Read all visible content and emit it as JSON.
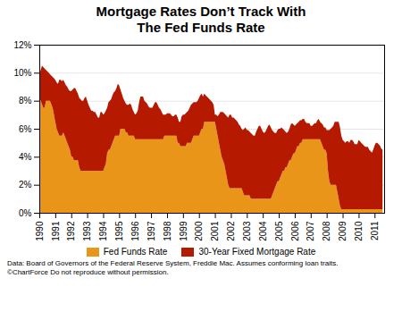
{
  "chart_data": {
    "type": "area",
    "title": "Mortgage Rates Don’t Track With\nThe Fed Funds Rate",
    "annotations": [
      "Data: Board of Governors of the Federal Reserve System, Freddie Mac. Assumes conforming loan traits.",
      "©ChartForce  Do not reproduce without permission."
    ],
    "x": [
      1990,
      1990.083,
      1990.167,
      1990.25,
      1990.333,
      1990.417,
      1990.5,
      1990.583,
      1990.667,
      1990.75,
      1990.833,
      1990.917,
      1991,
      1991.083,
      1991.167,
      1991.25,
      1991.333,
      1991.417,
      1991.5,
      1991.583,
      1991.667,
      1991.75,
      1991.833,
      1991.917,
      1992,
      1992.083,
      1992.167,
      1992.25,
      1992.333,
      1992.417,
      1992.5,
      1992.583,
      1992.667,
      1992.75,
      1992.833,
      1992.917,
      1993,
      1993.083,
      1993.167,
      1993.25,
      1993.333,
      1993.417,
      1993.5,
      1993.583,
      1993.667,
      1993.75,
      1993.833,
      1993.917,
      1994,
      1994.083,
      1994.167,
      1994.25,
      1994.333,
      1994.417,
      1994.5,
      1994.583,
      1994.667,
      1994.75,
      1994.833,
      1994.917,
      1995,
      1995.083,
      1995.167,
      1995.25,
      1995.333,
      1995.417,
      1995.5,
      1995.583,
      1995.667,
      1995.75,
      1995.833,
      1995.917,
      1996,
      1996.083,
      1996.167,
      1996.25,
      1996.333,
      1996.417,
      1996.5,
      1996.583,
      1996.667,
      1996.75,
      1996.833,
      1996.917,
      1997,
      1997.083,
      1997.167,
      1997.25,
      1997.333,
      1997.417,
      1997.5,
      1997.583,
      1997.667,
      1997.75,
      1997.833,
      1997.917,
      1998,
      1998.083,
      1998.167,
      1998.25,
      1998.333,
      1998.417,
      1998.5,
      1998.583,
      1998.667,
      1998.75,
      1998.833,
      1998.917,
      1999,
      1999.083,
      1999.167,
      1999.25,
      1999.333,
      1999.417,
      1999.5,
      1999.583,
      1999.667,
      1999.75,
      1999.833,
      1999.917,
      2000,
      2000.083,
      2000.167,
      2000.25,
      2000.333,
      2000.417,
      2000.5,
      2000.583,
      2000.667,
      2000.75,
      2000.833,
      2000.917,
      2001,
      2001.083,
      2001.167,
      2001.25,
      2001.333,
      2001.417,
      2001.5,
      2001.583,
      2001.667,
      2001.75,
      2001.833,
      2001.917,
      2002,
      2002.083,
      2002.167,
      2002.25,
      2002.333,
      2002.417,
      2002.5,
      2002.583,
      2002.667,
      2002.75,
      2002.833,
      2002.917,
      2003,
      2003.083,
      2003.167,
      2003.25,
      2003.333,
      2003.417,
      2003.5,
      2003.583,
      2003.667,
      2003.75,
      2003.833,
      2003.917,
      2004,
      2004.083,
      2004.167,
      2004.25,
      2004.333,
      2004.417,
      2004.5,
      2004.583,
      2004.667,
      2004.75,
      2004.833,
      2004.917,
      2005,
      2005.083,
      2005.167,
      2005.25,
      2005.333,
      2005.417,
      2005.5,
      2005.583,
      2005.667,
      2005.75,
      2005.833,
      2005.917,
      2006,
      2006.083,
      2006.167,
      2006.25,
      2006.333,
      2006.417,
      2006.5,
      2006.583,
      2006.667,
      2006.75,
      2006.833,
      2006.917,
      2007,
      2007.083,
      2007.167,
      2007.25,
      2007.333,
      2007.417,
      2007.5,
      2007.583,
      2007.667,
      2007.75,
      2007.833,
      2007.917,
      2008,
      2008.083,
      2008.167,
      2008.25,
      2008.333,
      2008.417,
      2008.5,
      2008.583,
      2008.667,
      2008.75,
      2008.833,
      2008.917,
      2009,
      2009.083,
      2009.167,
      2009.25,
      2009.333,
      2009.417,
      2009.5,
      2009.583,
      2009.667,
      2009.75,
      2009.833,
      2009.917,
      2010,
      2010.083,
      2010.167,
      2010.25,
      2010.333,
      2010.417,
      2010.5,
      2010.583,
      2010.667,
      2010.75,
      2010.833,
      2010.917,
      2011,
      2011.083,
      2011.167,
      2011.25,
      2011.333,
      2011.417,
      2011.5
    ],
    "series": [
      {
        "name": "Fed Funds Rate",
        "color": "#E8951A",
        "values": [
          8.25,
          8.0,
          7.75,
          7.5,
          7.5,
          8.0,
          8.0,
          8.0,
          8.0,
          7.76,
          7.5,
          7.0,
          6.5,
          6.0,
          5.75,
          5.5,
          5.5,
          5.5,
          5.75,
          5.5,
          5.25,
          5.0,
          4.75,
          4.5,
          4.0,
          4.0,
          3.75,
          3.75,
          3.75,
          3.75,
          3.25,
          3.0,
          3.0,
          3.0,
          3.0,
          3.0,
          3.0,
          3.0,
          3.0,
          3.0,
          3.0,
          3.0,
          3.0,
          3.0,
          3.0,
          3.0,
          3.0,
          3.0,
          3.0,
          3.25,
          3.5,
          4.25,
          4.5,
          4.5,
          4.75,
          5.0,
          5.25,
          5.5,
          5.5,
          5.5,
          5.5,
          6.0,
          6.0,
          6.0,
          6.0,
          5.75,
          5.75,
          5.5,
          5.5,
          5.5,
          5.5,
          5.5,
          5.25,
          5.25,
          5.25,
          5.25,
          5.25,
          5.25,
          5.25,
          5.25,
          5.25,
          5.25,
          5.25,
          5.25,
          5.25,
          5.25,
          5.25,
          5.25,
          5.25,
          5.25,
          5.25,
          5.25,
          5.25,
          5.25,
          5.5,
          5.5,
          5.5,
          5.5,
          5.5,
          5.5,
          5.5,
          5.5,
          5.5,
          5.5,
          5.0,
          5.0,
          4.75,
          4.75,
          4.75,
          4.75,
          4.75,
          5.0,
          5.0,
          5.0,
          5.0,
          5.25,
          5.5,
          5.5,
          5.5,
          5.5,
          5.5,
          5.75,
          6.0,
          6.0,
          6.5,
          6.5,
          6.5,
          6.5,
          6.5,
          6.5,
          6.5,
          6.5,
          6.5,
          6.0,
          5.5,
          5.0,
          4.5,
          4.0,
          3.75,
          3.5,
          3.0,
          2.5,
          2.0,
          1.75,
          1.75,
          1.75,
          1.75,
          1.75,
          1.75,
          1.75,
          1.75,
          1.75,
          1.75,
          1.5,
          1.25,
          1.25,
          1.25,
          1.25,
          1.25,
          1.0,
          1.0,
          1.0,
          1.0,
          1.0,
          1.0,
          1.0,
          1.0,
          1.0,
          1.0,
          1.0,
          1.0,
          1.0,
          1.0,
          1.0,
          1.0,
          1.25,
          1.5,
          1.75,
          2.0,
          2.25,
          2.25,
          2.5,
          2.75,
          3.0,
          3.0,
          3.25,
          3.25,
          3.5,
          3.75,
          3.75,
          4.0,
          4.25,
          4.25,
          4.5,
          4.75,
          4.75,
          5.0,
          5.0,
          5.25,
          5.25,
          5.25,
          5.25,
          5.25,
          5.25,
          5.25,
          5.25,
          5.25,
          5.25,
          5.25,
          5.25,
          5.25,
          5.25,
          5.0,
          4.75,
          4.5,
          4.5,
          4.25,
          3.0,
          2.25,
          2.0,
          2.0,
          2.0,
          2.0,
          2.0,
          1.5,
          1.0,
          0.5,
          0.25,
          0.25,
          0.25,
          0.25,
          0.25,
          0.25,
          0.25,
          0.25,
          0.25,
          0.25,
          0.25,
          0.25,
          0.25,
          0.25,
          0.25,
          0.25,
          0.25,
          0.25,
          0.25,
          0.25,
          0.25,
          0.25,
          0.25,
          0.25,
          0.25,
          0.25,
          0.25,
          0.25,
          0.25,
          0.25,
          0.25,
          0.25
        ]
      },
      {
        "name": "30-Year Fixed Mortgage Rate",
        "color": "#B51A00",
        "values": [
          9.9,
          10.2,
          10.5,
          10.4,
          10.3,
          10.2,
          10.1,
          10.0,
          9.9,
          9.8,
          9.7,
          9.6,
          9.5,
          9.3,
          9.2,
          9.5,
          9.5,
          9.4,
          9.5,
          9.3,
          9.1,
          9.0,
          8.8,
          8.7,
          8.7,
          8.8,
          8.9,
          8.9,
          8.7,
          8.5,
          8.2,
          8.1,
          8.0,
          8.0,
          8.2,
          8.3,
          8.0,
          7.7,
          7.5,
          7.3,
          7.3,
          7.2,
          7.2,
          7.0,
          6.8,
          6.8,
          7.2,
          7.2,
          7.0,
          7.1,
          7.3,
          7.5,
          7.9,
          8.0,
          8.1,
          8.4,
          8.6,
          8.7,
          8.9,
          9.2,
          9.1,
          8.8,
          8.5,
          8.2,
          8.0,
          7.8,
          7.7,
          7.7,
          7.8,
          7.7,
          7.4,
          7.2,
          7.0,
          7.1,
          7.3,
          7.9,
          8.3,
          8.3,
          8.3,
          8.0,
          7.9,
          7.8,
          7.6,
          7.5,
          7.5,
          7.5,
          7.7,
          7.9,
          7.9,
          7.7,
          7.5,
          7.4,
          7.2,
          7.0,
          7.0,
          7.0,
          7.1,
          7.1,
          7.1,
          7.0,
          6.9,
          6.9,
          7.0,
          7.0,
          6.8,
          6.5,
          6.5,
          6.9,
          7.0,
          7.0,
          7.1,
          7.2,
          7.3,
          7.5,
          7.7,
          7.8,
          7.9,
          7.9,
          7.9,
          8.0,
          8.2,
          8.4,
          8.5,
          8.3,
          8.5,
          8.4,
          8.3,
          8.2,
          8.1,
          8.0,
          7.9,
          7.7,
          7.0,
          7.0,
          6.9,
          7.0,
          7.2,
          7.2,
          7.2,
          7.1,
          7.0,
          6.9,
          6.8,
          7.0,
          7.0,
          6.8,
          6.8,
          6.7,
          6.6,
          6.5,
          6.3,
          6.2,
          6.0,
          5.9,
          6.0,
          6.1,
          5.9,
          5.9,
          5.8,
          5.7,
          5.6,
          5.5,
          5.5,
          5.8,
          6.0,
          6.2,
          6.2,
          6.0,
          5.8,
          5.7,
          5.8,
          6.0,
          6.2,
          6.3,
          6.1,
          5.9,
          5.8,
          5.7,
          5.7,
          5.9,
          6.0,
          6.0,
          6.1,
          6.0,
          5.9,
          5.8,
          5.7,
          5.8,
          6.0,
          6.3,
          6.4,
          6.3,
          6.2,
          6.3,
          6.4,
          6.5,
          6.6,
          6.6,
          6.7,
          6.7,
          6.5,
          6.4,
          6.4,
          6.4,
          6.2,
          6.2,
          6.3,
          6.4,
          6.4,
          6.6,
          6.7,
          6.5,
          6.4,
          6.3,
          6.1,
          6.1,
          5.9,
          5.9,
          5.9,
          6.0,
          6.1,
          6.2,
          6.5,
          6.5,
          6.5,
          6.5,
          6.1,
          5.5,
          5.2,
          5.1,
          5.0,
          5.1,
          5.1,
          5.0,
          5.2,
          5.2,
          5.1,
          4.9,
          4.9,
          4.9,
          5.2,
          5.1,
          5.0,
          4.9,
          4.8,
          4.7,
          4.7,
          4.7,
          4.5,
          4.4,
          4.3,
          4.5,
          4.8,
          5.0,
          5.0,
          4.9,
          4.8,
          4.6,
          4.5
        ]
      }
    ],
    "xlim": [
      1990,
      2011.6
    ],
    "xticks": [
      1990,
      1991,
      1992,
      1993,
      1994,
      1995,
      1996,
      1997,
      1998,
      1999,
      2000,
      2001,
      2002,
      2003,
      2004,
      2005,
      2006,
      2007,
      2008,
      2009,
      2010,
      2011
    ],
    "ylim": [
      0,
      12
    ],
    "yticks": [
      {
        "value": 0,
        "label": "0%"
      },
      {
        "value": 2,
        "label": "2%"
      },
      {
        "value": 4,
        "label": "4%"
      },
      {
        "value": 6,
        "label": "6%"
      },
      {
        "value": 8,
        "label": "8%"
      },
      {
        "value": 10,
        "label": "10%"
      },
      {
        "value": 12,
        "label": "12%"
      }
    ],
    "grid": "y",
    "legend": "bottom"
  }
}
